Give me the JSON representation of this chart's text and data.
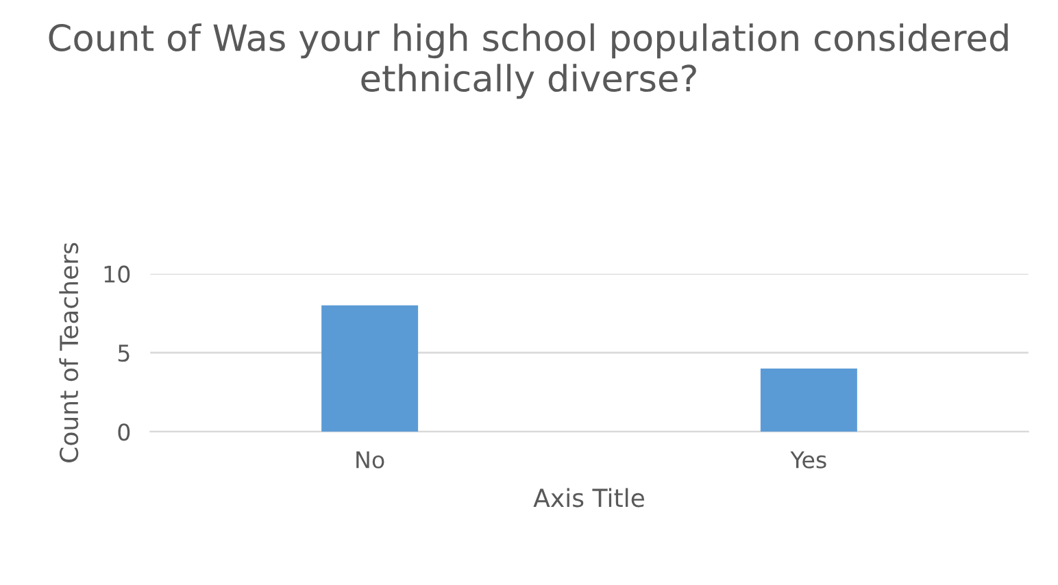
{
  "chart_data": {
    "type": "bar",
    "title": "Count of Was your high school population considered ethnically diverse?",
    "categories": [
      "No",
      "Yes"
    ],
    "values": [
      8,
      4
    ],
    "color": "#5b9bd5",
    "xlabel": "Axis Title",
    "ylabel": "Count of Teachers",
    "ylim": [
      0,
      10
    ],
    "yticks": [
      0,
      5,
      10
    ],
    "grid": "y",
    "legend": false
  }
}
